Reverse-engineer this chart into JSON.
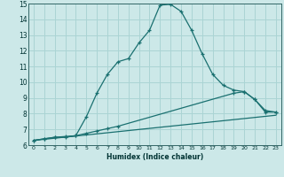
{
  "xlabel": "Humidex (Indice chaleur)",
  "xlim": [
    -0.5,
    23.5
  ],
  "ylim": [
    6,
    15
  ],
  "yticks": [
    6,
    7,
    8,
    9,
    10,
    11,
    12,
    13,
    14,
    15
  ],
  "xticks": [
    0,
    1,
    2,
    3,
    4,
    5,
    6,
    7,
    8,
    9,
    10,
    11,
    12,
    13,
    14,
    15,
    16,
    17,
    18,
    19,
    20,
    21,
    22,
    23
  ],
  "bg_color": "#cce8e8",
  "grid_color": "#aad4d4",
  "line_color": "#1a7070",
  "line1_x": [
    0,
    1,
    2,
    3,
    4,
    5,
    6,
    7,
    8,
    9,
    10,
    11,
    12,
    13,
    14,
    15,
    16,
    17,
    18,
    19,
    20,
    21,
    22,
    23
  ],
  "line1_y": [
    6.3,
    6.4,
    6.5,
    6.5,
    6.6,
    7.8,
    9.3,
    10.5,
    11.3,
    11.5,
    12.5,
    13.3,
    14.9,
    14.95,
    14.5,
    13.3,
    11.8,
    10.5,
    9.8,
    9.5,
    9.4,
    8.9,
    8.1,
    8.1
  ],
  "line2_x": [
    0,
    1,
    2,
    3,
    4,
    5,
    6,
    7,
    8,
    19,
    20,
    21,
    22,
    23
  ],
  "line2_y": [
    6.3,
    6.4,
    6.5,
    6.55,
    6.6,
    6.75,
    6.9,
    7.05,
    7.2,
    9.3,
    9.4,
    8.9,
    8.2,
    8.1
  ],
  "line3_x": [
    0,
    23
  ],
  "line3_y": [
    6.3,
    7.9
  ]
}
